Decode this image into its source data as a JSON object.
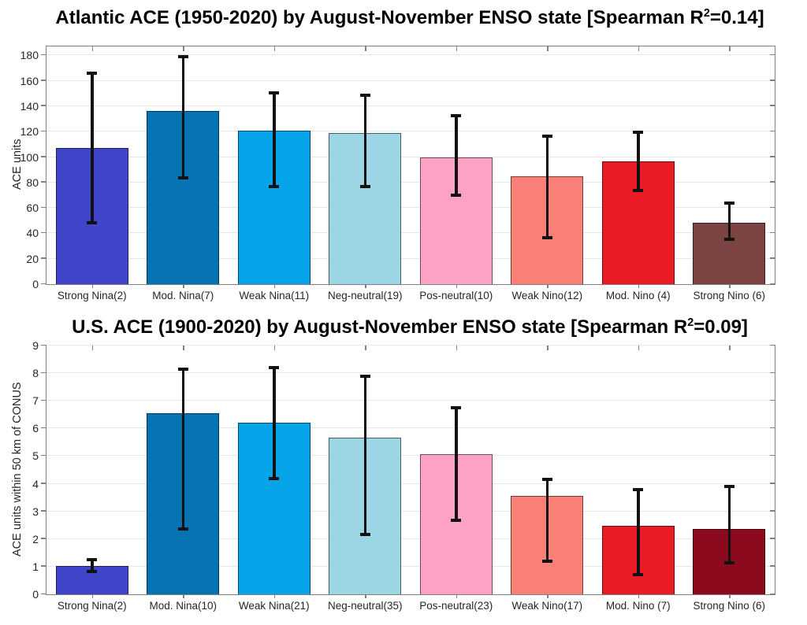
{
  "figure": {
    "background": "#ffffff"
  },
  "style": {
    "axis_color": "#808080",
    "grid_color": "#e7e7e7",
    "errorbar_color": "#121212",
    "tick_label_color": "#262626",
    "bar_edge_color": "rgba(0,0,0,0.55)"
  },
  "chart_data": [
    {
      "type": "bar",
      "title": "Atlantic ACE (1950-2020) by August-November ENSO state [Spearman R2=0.14]",
      "title_pre": "Atlantic ACE (1950-2020) by August-November ENSO state [Spearman R",
      "title_sup": "2",
      "title_post": "=0.14]",
      "ylabel": "ACE units",
      "xlabel": "",
      "ylim": [
        0,
        187
      ],
      "yticks": [
        0,
        20,
        40,
        60,
        80,
        100,
        120,
        140,
        160,
        180
      ],
      "grid": true,
      "legend": "none",
      "categories": [
        "Strong Nina(2)",
        "Mod. Nina(7)",
        "Weak Nina(11)",
        "Neg-neutral(19)",
        "Pos-neutral(10)",
        "Weak Nino(12)",
        "Mod. Nino (4)",
        "Strong Nino (6)"
      ],
      "values": [
        107,
        136.5,
        121,
        119,
        99.5,
        85,
        96.5,
        48.5
      ],
      "err_low": [
        48,
        83.5,
        76.5,
        77,
        70,
        36.5,
        74,
        35
      ],
      "err_high": [
        166,
        179,
        150.5,
        148.5,
        132.5,
        116.5,
        119.5,
        63.5
      ],
      "bar_colors": [
        "#4045C9",
        "#0673B3",
        "#05A3E8",
        "#9CD6E4",
        "#FDA2C4",
        "#F98076",
        "#EB1B26",
        "#7C4343"
      ]
    },
    {
      "type": "bar",
      "title": "U.S. ACE (1900-2020) by August-November ENSO state [Spearman R2=0.09]",
      "title_pre": "U.S. ACE (1900-2020) by August-November ENSO state [Spearman R",
      "title_sup": "2",
      "title_post": "=0.09]",
      "ylabel": "ACE units within 50 km of CONUS",
      "xlabel": "",
      "ylim": [
        0,
        9
      ],
      "yticks": [
        0,
        1,
        2,
        3,
        4,
        5,
        6,
        7,
        8,
        9
      ],
      "grid": true,
      "legend": "none",
      "categories": [
        "Strong Nina(2)",
        "Mod. Nina(10)",
        "Weak Nina(21)",
        "Neg-neutral(35)",
        "Pos-neutral(23)",
        "Weak Nino(17)",
        "Mod. Nino (7)",
        "Strong Nino (6)"
      ],
      "values": [
        1.03,
        6.55,
        6.22,
        5.67,
        5.07,
        3.56,
        2.48,
        2.36
      ],
      "err_low": [
        0.83,
        2.36,
        4.2,
        2.16,
        2.68,
        1.2,
        0.7,
        1.14
      ],
      "err_high": [
        1.24,
        8.15,
        8.2,
        7.9,
        6.75,
        4.17,
        3.79,
        3.89
      ],
      "bar_colors": [
        "#4045C9",
        "#0673B3",
        "#05A3E8",
        "#9CD6E4",
        "#FDA2C4",
        "#F98076",
        "#EB1B26",
        "#8C0A1E"
      ]
    }
  ]
}
